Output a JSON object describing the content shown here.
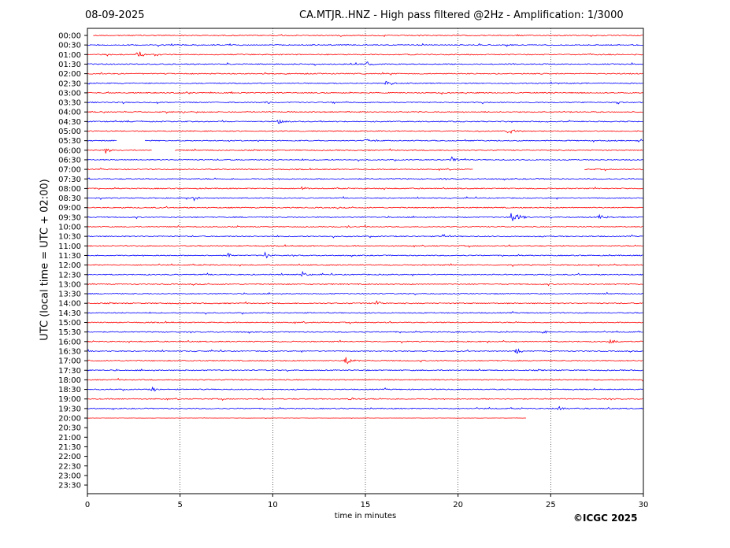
{
  "header": {
    "date": "08-09-2025",
    "title": "CA.MTJR..HNZ - High pass filtered @2Hz - Amplification: 1/3000"
  },
  "copyright": "©ICGC 2025",
  "colors": {
    "even_row": "#ff0000",
    "odd_row": "#0000ff",
    "grid": "#000000"
  },
  "chart_data": {
    "type": "line",
    "title": "CA.MTJR..HNZ - High pass filtered @2Hz - Amplification: 1/3000",
    "xlabel": "time in minutes",
    "ylabel": "UTC (local time = UTC + 02:00)",
    "xlim": [
      0,
      30
    ],
    "x_ticks": [
      0,
      5,
      10,
      15,
      20,
      25,
      30
    ],
    "grid_x": true,
    "row_labels": [
      "00:00",
      "00:30",
      "01:00",
      "01:30",
      "02:00",
      "02:30",
      "03:00",
      "03:30",
      "04:00",
      "04:30",
      "05:00",
      "05:30",
      "06:00",
      "06:30",
      "07:00",
      "07:30",
      "08:00",
      "08:30",
      "09:00",
      "09:30",
      "10:00",
      "10:30",
      "11:00",
      "11:30",
      "12:00",
      "12:30",
      "13:00",
      "13:30",
      "14:00",
      "14:30",
      "15:00",
      "15:30",
      "16:00",
      "16:30",
      "17:00",
      "17:30",
      "18:00",
      "18:30",
      "19:00",
      "19:30",
      "20:00",
      "20:30",
      "21:00",
      "21:30",
      "22:00",
      "22:30",
      "23:00",
      "23:30"
    ],
    "last_trace": {
      "row": "20:00",
      "end_minute": 23.7
    },
    "gaps": [
      {
        "row": "00:00",
        "from": 0,
        "to": 0.3
      },
      {
        "row": "05:30",
        "from": 1.6,
        "to": 3.1
      },
      {
        "row": "06:00",
        "from": 3.5,
        "to": 4.7
      },
      {
        "row": "07:00",
        "from": 20.8,
        "to": 26.8
      }
    ],
    "events": [
      {
        "row": "01:00",
        "minute": 2.7,
        "amplitude": 7
      },
      {
        "row": "01:30",
        "minute": 15.1,
        "amplitude": 3
      },
      {
        "row": "02:30",
        "minute": 16.1,
        "amplitude": 5
      },
      {
        "row": "03:30",
        "minute": 9.6,
        "amplitude": 3
      },
      {
        "row": "04:30",
        "minute": 10.3,
        "amplitude": 3
      },
      {
        "row": "05:00",
        "minute": 22.7,
        "amplitude": 8
      },
      {
        "row": "05:30",
        "minute": 15.0,
        "amplitude": 3
      },
      {
        "row": "06:00",
        "minute": 1.0,
        "amplitude": 4
      },
      {
        "row": "06:30",
        "minute": 19.6,
        "amplitude": 5
      },
      {
        "row": "08:00",
        "minute": 11.6,
        "amplitude": 3
      },
      {
        "row": "08:30",
        "minute": 5.7,
        "amplitude": 4
      },
      {
        "row": "09:30",
        "minute": 22.9,
        "amplitude": 12
      },
      {
        "row": "09:30",
        "minute": 27.6,
        "amplitude": 4
      },
      {
        "row": "10:00",
        "minute": 14.0,
        "amplitude": 3
      },
      {
        "row": "10:30",
        "minute": 19.2,
        "amplitude": 4
      },
      {
        "row": "11:30",
        "minute": 7.6,
        "amplitude": 3
      },
      {
        "row": "11:30",
        "minute": 9.6,
        "amplitude": 5
      },
      {
        "row": "12:30",
        "minute": 11.6,
        "amplitude": 4
      },
      {
        "row": "14:00",
        "minute": 15.6,
        "amplitude": 4
      },
      {
        "row": "15:30",
        "minute": 24.5,
        "amplitude": 4
      },
      {
        "row": "16:00",
        "minute": 28.2,
        "amplitude": 3
      },
      {
        "row": "16:30",
        "minute": 23.1,
        "amplitude": 5
      },
      {
        "row": "17:00",
        "minute": 13.9,
        "amplitude": 7
      },
      {
        "row": "18:30",
        "minute": 3.5,
        "amplitude": 3
      },
      {
        "row": "19:00",
        "minute": 14.1,
        "amplitude": 3
      },
      {
        "row": "19:30",
        "minute": 25.5,
        "amplitude": 4
      }
    ]
  }
}
